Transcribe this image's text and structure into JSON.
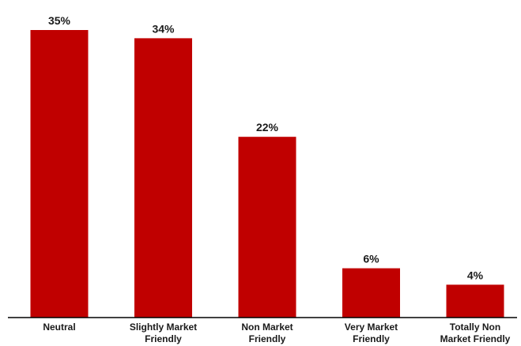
{
  "chart_data": {
    "type": "bar",
    "categories": [
      "Neutral",
      "Slightly Market Friendly",
      "Non Market Friendly",
      "Very Market Friendly",
      "Totally Non Market Friendly"
    ],
    "category_lines": [
      [
        "Neutral"
      ],
      [
        "Slightly Market",
        "Friendly"
      ],
      [
        "Non Market",
        "Friendly"
      ],
      [
        "Very Market",
        "Friendly"
      ],
      [
        "Totally Non",
        "Market Friendly"
      ]
    ],
    "values": [
      35,
      34,
      22,
      6,
      4
    ],
    "value_labels": [
      "35%",
      "34%",
      "22%",
      "6%",
      "4%"
    ],
    "title": "",
    "xlabel": "",
    "ylabel": "",
    "ylim": [
      0,
      35
    ],
    "grid": false,
    "legend": "none",
    "colors": {
      "bar": "#c00000",
      "axis": "#000000",
      "text": "#1a1a1a"
    }
  }
}
